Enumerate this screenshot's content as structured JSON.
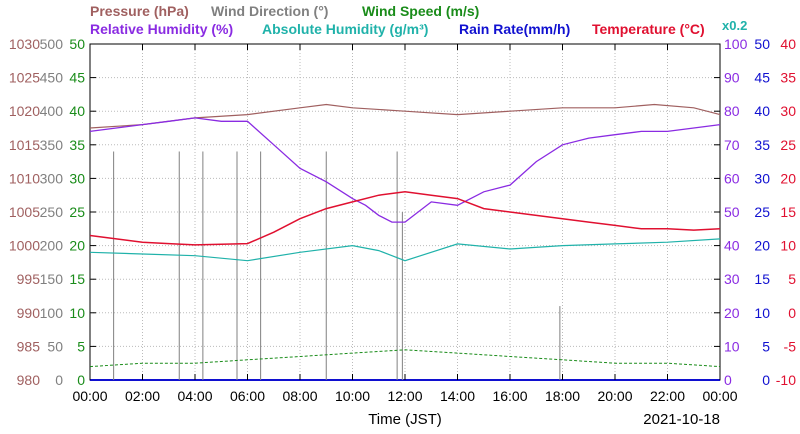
{
  "header": {
    "pressure": "Pressure (hPa)",
    "wind_direction": "Wind Direction (°)",
    "wind_speed": "Wind Speed (m/s)",
    "relative_humidity": "Relative Humidity (%)",
    "absolute_humidity": "Absolute Humidity (g/m³)",
    "rain_rate": "Rain Rate(mm/h)",
    "temperature": "Temperature (°C)",
    "abs_hum_scale": "x0.2"
  },
  "footer": {
    "xlabel": "Time (JST)",
    "date": "2021-10-18"
  },
  "colors": {
    "pressure": "#a06060",
    "wind_direction": "#808080",
    "wind_speed": "#1a8c1a",
    "relative_humidity": "#8a2be2",
    "absolute_humidity": "#20b2aa",
    "rain_rate": "#1010d0",
    "temperature": "#e01030",
    "grid": "#bbbbbb"
  },
  "chart_data": {
    "type": "line",
    "x_ticks": [
      "00:00",
      "02:00",
      "04:00",
      "06:00",
      "08:00",
      "10:00",
      "12:00",
      "14:00",
      "16:00",
      "18:00",
      "20:00",
      "22:00",
      "00:00"
    ],
    "axes": {
      "pressure": {
        "ticks": [
          "980",
          "985",
          "990",
          "995",
          "1000",
          "1005",
          "1010",
          "1015",
          "1020",
          "1025",
          "1030"
        ],
        "range": [
          980,
          1030
        ]
      },
      "wind_direction": {
        "ticks": [
          "0",
          "50",
          "100",
          "150",
          "200",
          "250",
          "300",
          "350",
          "400",
          "450",
          "500"
        ],
        "range": [
          0,
          500
        ]
      },
      "wind_speed": {
        "ticks": [
          "0",
          "5",
          "10",
          "15",
          "20",
          "25",
          "30",
          "35",
          "40",
          "45",
          "50"
        ],
        "range": [
          0,
          50
        ]
      },
      "relative_humidity": {
        "ticks": [
          "0",
          "10",
          "20",
          "30",
          "40",
          "50",
          "60",
          "70",
          "80",
          "90",
          "100"
        ],
        "range": [
          0,
          100
        ]
      },
      "rain_rate": {
        "ticks": [
          "0",
          "5",
          "10",
          "15",
          "20",
          "25",
          "30",
          "35",
          "40",
          "45",
          "50"
        ],
        "range": [
          0,
          50
        ]
      },
      "temperature": {
        "ticks": [
          "-10",
          "-5",
          "0",
          "5",
          "10",
          "15",
          "20",
          "25",
          "30",
          "35",
          "40"
        ],
        "range": [
          -10,
          40
        ]
      }
    },
    "series": [
      {
        "name": "Pressure (hPa)",
        "x": [
          0,
          2,
          4,
          6,
          8,
          9,
          10,
          12,
          14,
          16,
          18,
          20,
          21.5,
          23,
          24
        ],
        "y": [
          1017.5,
          1018,
          1019,
          1019.5,
          1020.5,
          1021,
          1020.5,
          1020,
          1019.5,
          1020,
          1020.5,
          1020.5,
          1021,
          1020.5,
          1019.5
        ]
      },
      {
        "name": "Relative Humidity (%)",
        "x": [
          0,
          1,
          2,
          3,
          4,
          5,
          6,
          7,
          8,
          9,
          10,
          10.5,
          11,
          11.5,
          12,
          13,
          14,
          15,
          16,
          17,
          18,
          19,
          20,
          21,
          22,
          23,
          24
        ],
        "y": [
          74,
          75,
          76,
          77,
          78,
          77,
          77,
          70,
          63,
          59,
          54,
          52,
          49,
          47,
          47,
          53,
          52,
          56,
          58,
          65,
          70,
          72,
          73,
          74,
          74,
          75,
          76
        ]
      },
      {
        "name": "Temperature (°C)",
        "x": [
          0,
          1,
          2,
          3,
          4,
          5,
          6,
          7,
          8,
          9,
          10,
          11,
          12,
          13,
          14,
          15,
          16,
          17,
          18,
          19,
          20,
          21,
          22,
          23,
          24
        ],
        "y": [
          11.5,
          11,
          10.5,
          10.3,
          10.1,
          10.2,
          10.3,
          12,
          14,
          15.5,
          16.5,
          17.5,
          18,
          17.5,
          17,
          15.5,
          15,
          14.5,
          14,
          13.5,
          13,
          12.5,
          12.5,
          12.3,
          12.5
        ]
      },
      {
        "name": "Absolute Humidity (g/m³)",
        "x": [
          0,
          2,
          4,
          6,
          8,
          10,
          11,
          12,
          14,
          16,
          18,
          20,
          22,
          24
        ],
        "y": [
          38,
          37.5,
          37,
          35.5,
          38,
          40,
          38.5,
          35.5,
          40.5,
          39,
          40,
          40.5,
          41,
          42
        ]
      },
      {
        "name": "Wind Speed (m/s)",
        "x": [
          0,
          2,
          4,
          6,
          8,
          10,
          12,
          14,
          16,
          18,
          20,
          22,
          24
        ],
        "y": [
          2,
          2.5,
          2.5,
          3,
          3.5,
          4,
          4.5,
          4,
          3.5,
          3,
          2.5,
          2.5,
          2
        ]
      },
      {
        "name": "Wind Direction (°)",
        "x": [
          0.9,
          3.4,
          4.3,
          5.6,
          6.5,
          9.0,
          11.7,
          11.9,
          17.9
        ],
        "y": [
          340,
          340,
          340,
          340,
          340,
          340,
          340,
          250,
          110
        ]
      },
      {
        "name": "Rain Rate(mm/h)",
        "x": [
          0,
          24
        ],
        "y": [
          0,
          0
        ]
      }
    ],
    "grid": true
  }
}
